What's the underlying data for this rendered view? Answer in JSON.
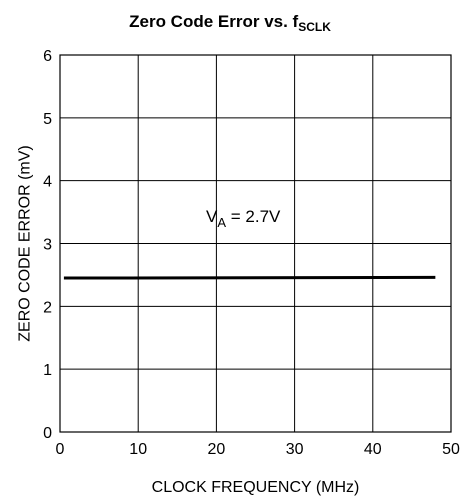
{
  "chart_data": {
    "type": "line",
    "title_main": "Zero Code Error vs. f",
    "title_sub": "SCLK",
    "xlabel": "CLOCK FREQUENCY (MHz)",
    "ylabel": "ZERO CODE ERROR (mV)",
    "xlim": [
      0,
      50
    ],
    "ylim": [
      0,
      6
    ],
    "x_ticks": [
      "0",
      "10",
      "20",
      "30",
      "40",
      "50"
    ],
    "y_ticks": [
      "0",
      "1",
      "2",
      "3",
      "4",
      "5",
      "6"
    ],
    "grid": true,
    "annotation": {
      "main": "V",
      "sub": "A",
      "rest": " = 2.7V"
    },
    "series": [
      {
        "x": [
          0.5,
          48
        ],
        "y": [
          2.45,
          2.46
        ]
      }
    ]
  }
}
